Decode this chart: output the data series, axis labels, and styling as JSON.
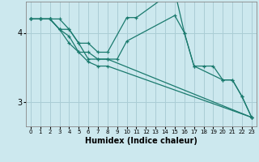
{
  "title": "",
  "xlabel": "Humidex (Indice chaleur)",
  "background_color": "#cce8ee",
  "grid_color": "#aacdd5",
  "line_color": "#1a7a6e",
  "xlim": [
    -0.5,
    23.5
  ],
  "ylim": [
    2.65,
    4.45
  ],
  "yticks": [
    3,
    4
  ],
  "xticks": [
    0,
    1,
    2,
    3,
    4,
    5,
    6,
    7,
    8,
    9,
    10,
    11,
    12,
    13,
    14,
    15,
    16,
    17,
    18,
    19,
    20,
    21,
    22,
    23
  ],
  "series": [
    {
      "x": [
        0,
        1,
        2,
        3,
        4,
        5,
        6,
        7,
        8,
        10,
        11,
        14,
        15,
        16,
        17,
        20,
        21,
        22,
        23
      ],
      "y": [
        4.2,
        4.2,
        4.2,
        4.2,
        4.05,
        3.85,
        3.85,
        3.72,
        3.72,
        4.22,
        4.22,
        4.52,
        4.6,
        4.0,
        3.52,
        3.32,
        3.32,
        3.08,
        2.78
      ]
    },
    {
      "x": [
        0,
        1,
        2,
        3,
        4,
        5,
        6,
        7,
        8,
        9,
        10,
        15,
        16,
        17,
        18,
        19,
        20,
        21,
        22,
        23
      ],
      "y": [
        4.2,
        4.2,
        4.2,
        4.05,
        3.85,
        3.72,
        3.72,
        3.62,
        3.62,
        3.62,
        3.88,
        4.25,
        4.0,
        3.52,
        3.52,
        3.52,
        3.32,
        3.32,
        3.08,
        2.78
      ]
    },
    {
      "x": [
        0,
        1,
        2,
        3,
        4,
        5,
        6,
        7,
        8,
        23
      ],
      "y": [
        4.2,
        4.2,
        4.2,
        4.05,
        4.05,
        3.85,
        3.62,
        3.62,
        3.62,
        2.78
      ]
    },
    {
      "x": [
        0,
        1,
        2,
        3,
        4,
        5,
        6,
        7,
        8,
        23
      ],
      "y": [
        4.2,
        4.2,
        4.2,
        4.05,
        3.95,
        3.72,
        3.58,
        3.52,
        3.52,
        2.78
      ]
    }
  ]
}
